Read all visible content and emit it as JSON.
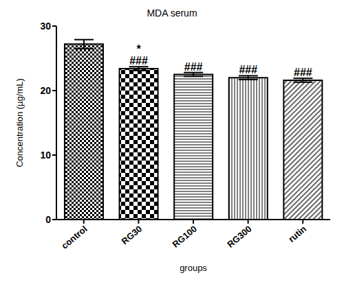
{
  "chart_data": {
    "type": "bar",
    "title": "MDA serum",
    "x_label": "groups",
    "y_label": "Concentration (µg/mL)",
    "categories": [
      "control",
      "RG30",
      "RG100",
      "RG300",
      "rutin"
    ],
    "values": [
      27.2,
      23.4,
      22.5,
      22.0,
      21.6
    ],
    "errors": [
      0.7,
      0.3,
      0.3,
      0.3,
      0.3
    ],
    "annotations": [
      {
        "category": "RG30",
        "text": "*"
      },
      {
        "category": "RG30",
        "text": "###"
      },
      {
        "category": "RG100",
        "text": "###"
      },
      {
        "category": "RG300",
        "text": "###"
      },
      {
        "category": "rutin",
        "text": "###"
      }
    ],
    "color": "#000000",
    "ylim": [
      0,
      30
    ],
    "yticks": [
      0,
      10,
      20,
      30
    ],
    "grid": false
  }
}
